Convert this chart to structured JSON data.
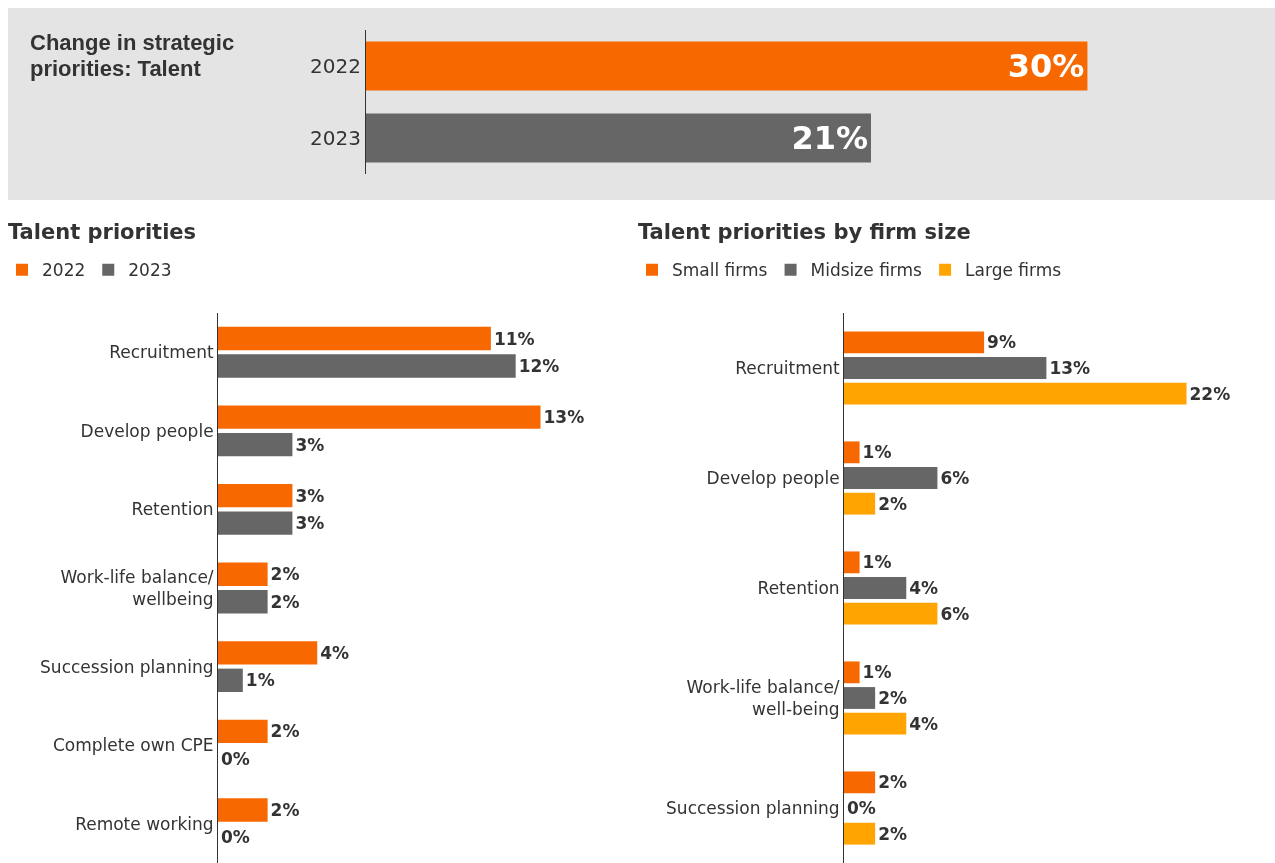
{
  "chart_data": [
    {
      "type": "bar",
      "orientation": "horizontal",
      "title": "Change in strategic priorities: Talent",
      "categories": [
        "2022",
        "2023"
      ],
      "values": [
        30,
        21
      ],
      "colors": [
        "#f76800",
        "#666666"
      ],
      "value_labels": [
        "30%",
        "21%"
      ]
    },
    {
      "type": "bar",
      "orientation": "horizontal",
      "title": "Talent priorities",
      "legend": "top left",
      "categories": [
        "Recruitment",
        "Develop people",
        "Retention",
        "Work-life balance/\nwellbeing",
        "Succession planning",
        "Complete own CPE",
        "Remote working"
      ],
      "series": [
        {
          "name": "2022",
          "color": "#f76800",
          "values": [
            11,
            13,
            3,
            2,
            4,
            2,
            2
          ],
          "value_labels": [
            "11%",
            "13%",
            "3%",
            "2%",
            "4%",
            "2%",
            "2%"
          ]
        },
        {
          "name": "2023",
          "color": "#666666",
          "values": [
            12,
            3,
            3,
            2,
            1,
            0,
            0
          ],
          "value_labels": [
            "12%",
            "3%",
            "3%",
            "2%",
            "1%",
            "0%",
            "0%"
          ]
        }
      ]
    },
    {
      "type": "bar",
      "orientation": "horizontal",
      "title": "Talent priorities by firm size",
      "legend": "top left",
      "categories": [
        "Recruitment",
        "Develop people",
        "Retention",
        "Work-life balance/\nwell-being",
        "Succession planning"
      ],
      "series": [
        {
          "name": "Small firms",
          "color": "#f76800",
          "values": [
            9,
            1,
            1,
            1,
            2
          ],
          "value_labels": [
            "9%",
            "1%",
            "1%",
            "1%",
            "2%"
          ]
        },
        {
          "name": "Midsize firms",
          "color": "#666666",
          "values": [
            13,
            6,
            4,
            2,
            0
          ],
          "value_labels": [
            "13%",
            "6%",
            "4%",
            "2%",
            "0%"
          ]
        },
        {
          "name": "Large firms",
          "color": "#ffa400",
          "values": [
            22,
            2,
            6,
            4,
            2
          ],
          "value_labels": [
            "22%",
            "2%",
            "6%",
            "4%",
            "2%"
          ]
        }
      ]
    }
  ]
}
